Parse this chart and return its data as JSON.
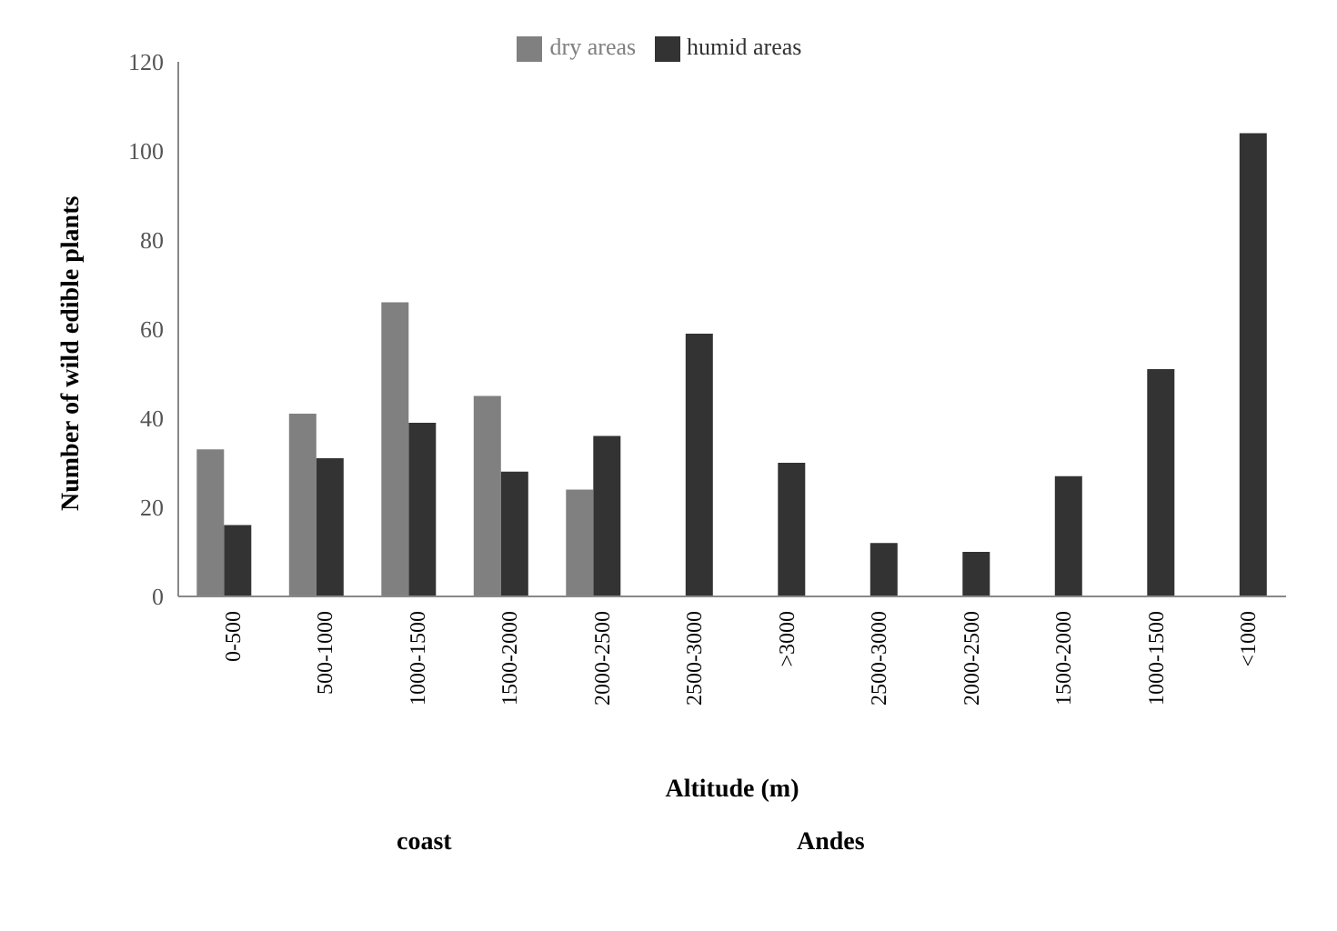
{
  "chart_data": {
    "type": "bar",
    "xlabel": "Altitude (m)",
    "ylabel": "Number of wild edible plants",
    "categories": [
      "0-500",
      "500-1000",
      "1000-1500",
      "1500-2000",
      "2000-2500",
      "2500-3000",
      ">3000",
      "2500-3000",
      "2000-2500",
      "1500-2000",
      "1000-1500",
      "<1000"
    ],
    "series": [
      {
        "name": "dry areas",
        "color": "#808080",
        "values": [
          33,
          41,
          66,
          45,
          24,
          null,
          null,
          null,
          null,
          null,
          null,
          null
        ]
      },
      {
        "name": "humid areas",
        "color": "#333333",
        "values": [
          16,
          31,
          39,
          28,
          36,
          59,
          30,
          12,
          10,
          27,
          51,
          104
        ]
      }
    ],
    "ylim": [
      0,
      120
    ],
    "yticks": [
      0,
      20,
      40,
      60,
      80,
      100,
      120
    ],
    "grid": false,
    "legend": "top",
    "annotations": [
      "coast",
      "Andes"
    ]
  }
}
